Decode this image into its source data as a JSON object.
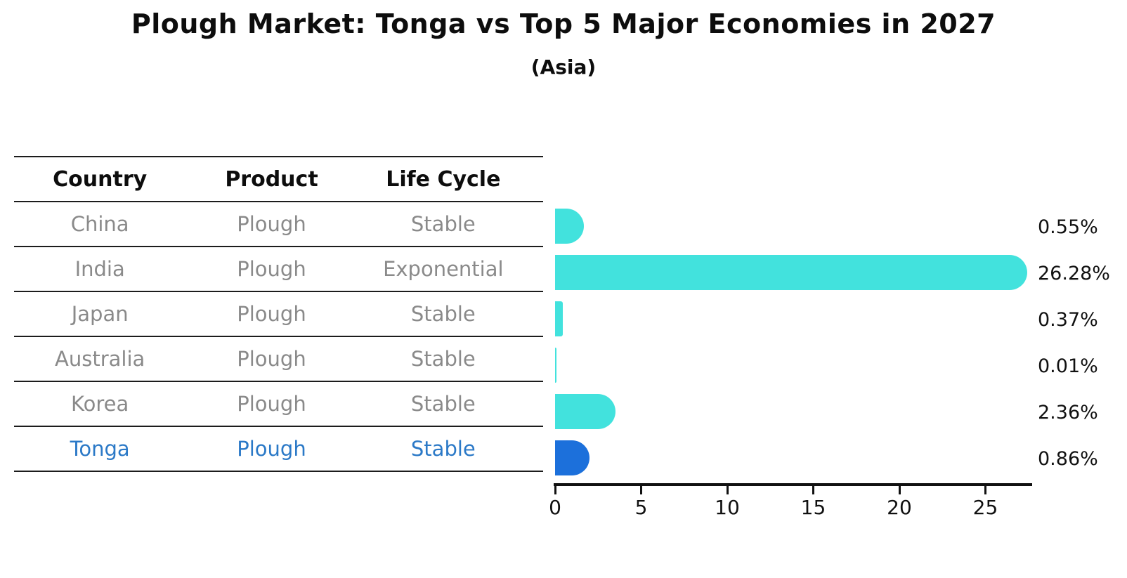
{
  "title": "Plough Market: Tonga vs Top 5 Major Economies in 2027",
  "subtitle": "(Asia)",
  "table": {
    "headers": [
      "Country",
      "Product",
      "Life Cycle"
    ],
    "rows": [
      {
        "country": "China",
        "product": "Plough",
        "life_cycle": "Stable",
        "highlighted": false
      },
      {
        "country": "India",
        "product": "Plough",
        "life_cycle": "Exponential",
        "highlighted": false
      },
      {
        "country": "Japan",
        "product": "Plough",
        "life_cycle": "Stable",
        "highlighted": false
      },
      {
        "country": "Australia",
        "product": "Plough",
        "life_cycle": "Stable",
        "highlighted": false
      },
      {
        "country": "Korea",
        "product": "Plough",
        "life_cycle": "Stable",
        "highlighted": false
      },
      {
        "country": "Tonga",
        "product": "Plough",
        "life_cycle": "Stable",
        "highlighted": true
      }
    ]
  },
  "chart_data": {
    "type": "bar",
    "orientation": "horizontal",
    "title": "Plough Market: Tonga vs Top 5 Major Economies in 2027",
    "subtitle": "(Asia)",
    "categories": [
      "China",
      "India",
      "Japan",
      "Australia",
      "Korea",
      "Tonga"
    ],
    "values": [
      0.55,
      26.28,
      0.37,
      0.01,
      2.36,
      0.86
    ],
    "value_labels": [
      "0.55%",
      "26.28%",
      "0.37%",
      "0.01%",
      "2.36%",
      "0.86%"
    ],
    "unit": "%",
    "x_ticks": [
      0,
      5,
      10,
      15,
      20,
      25
    ],
    "xlim": [
      0,
      27.7
    ],
    "grid": false,
    "legend": false,
    "highlight_index": 5,
    "colors": {
      "bar": "#42E2DD",
      "highlight_bar": "#1C70DB",
      "table_row_text": "#8A8A8A",
      "highlight_text": "#2B79C7",
      "axis": "#111111"
    }
  }
}
